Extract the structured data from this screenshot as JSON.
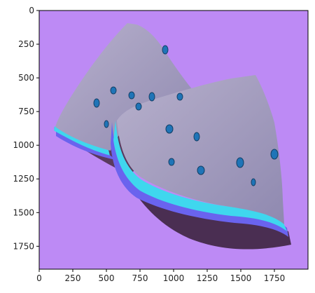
{
  "figure": {
    "type": "image-plot",
    "background_color": "#bd8af5",
    "axes": {
      "x": {
        "ticks": [
          "0",
          "250",
          "500",
          "750",
          "1000",
          "1250",
          "1500",
          "1750"
        ],
        "range": [
          0,
          2000
        ]
      },
      "y": {
        "ticks": [
          "0",
          "250",
          "500",
          "750",
          "1000",
          "1250",
          "1500",
          "1750"
        ],
        "range": [
          0,
          1920
        ]
      }
    },
    "subject": "two-watermelon-slices",
    "palette": {
      "flesh": "#9c94ba",
      "flesh_light": "#b7b0cc",
      "rind_cyan": "#3fd7ee",
      "rind_blue": "#6a63ee",
      "rind_dark": "#4a2e52",
      "seed": "#1f74b7"
    }
  }
}
